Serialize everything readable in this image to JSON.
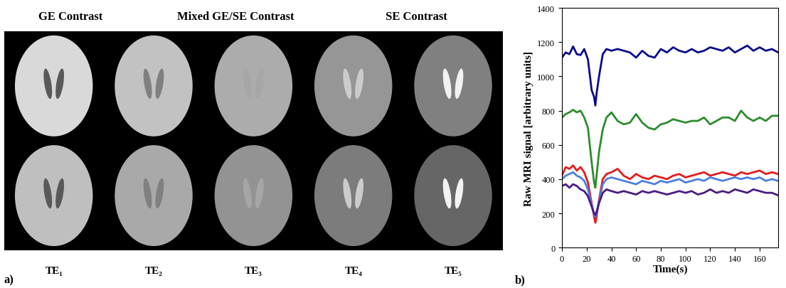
{
  "panel_labels": [
    "a)",
    "b)"
  ],
  "panel_a": {
    "type": "image_grid",
    "headers": [
      "GE Contrast",
      "Mixed GE/SE Contrast",
      "SE Contrast"
    ],
    "echo_times": [
      "TE₁",
      "TE₂",
      "TE₃",
      "TE₄",
      "TE₅"
    ]
  },
  "chart_data": {
    "type": "line",
    "x_label": "Time(s)",
    "y_label": "Raw MRI signal [arbitrary units]",
    "x": [
      0,
      3,
      6,
      9,
      12,
      15,
      18,
      21,
      24,
      26,
      27,
      28,
      30,
      33,
      36,
      40,
      45,
      50,
      55,
      60,
      65,
      70,
      75,
      80,
      85,
      90,
      95,
      100,
      105,
      110,
      115,
      120,
      125,
      130,
      135,
      140,
      145,
      150,
      155,
      160,
      165,
      170,
      175
    ],
    "xlim": [
      0,
      175
    ],
    "xticks": [
      0,
      20,
      40,
      60,
      80,
      100,
      120,
      140,
      160
    ],
    "ylim": [
      0,
      1400
    ],
    "yticks": [
      0,
      200,
      400,
      600,
      800,
      1000,
      1200,
      1400
    ],
    "grid": false,
    "series": [
      {
        "color": "#0a0a8c",
        "values": [
          1110,
          1140,
          1130,
          1175,
          1130,
          1125,
          1160,
          1100,
          920,
          880,
          830,
          900,
          1000,
          1130,
          1160,
          1150,
          1160,
          1150,
          1140,
          1110,
          1150,
          1120,
          1110,
          1160,
          1140,
          1170,
          1150,
          1140,
          1160,
          1140,
          1150,
          1170,
          1160,
          1150,
          1170,
          1140,
          1160,
          1180,
          1150,
          1170,
          1150,
          1160,
          1140
        ]
      },
      {
        "color": "#2e8b2e",
        "values": [
          760,
          780,
          790,
          805,
          790,
          800,
          760,
          700,
          500,
          380,
          350,
          420,
          560,
          690,
          760,
          790,
          740,
          720,
          730,
          780,
          730,
          700,
          690,
          720,
          730,
          750,
          740,
          730,
          740,
          740,
          760,
          720,
          740,
          760,
          760,
          740,
          800,
          760,
          740,
          760,
          740,
          770,
          770
        ]
      },
      {
        "color": "#e41a1c",
        "values": [
          420,
          470,
          460,
          480,
          450,
          470,
          440,
          380,
          260,
          180,
          145,
          180,
          280,
          400,
          430,
          440,
          460,
          420,
          400,
          430,
          410,
          400,
          420,
          410,
          400,
          420,
          430,
          410,
          420,
          430,
          440,
          420,
          430,
          440,
          430,
          420,
          440,
          430,
          440,
          450,
          430,
          440,
          430
        ]
      },
      {
        "color": "#4a7fe0",
        "values": [
          400,
          420,
          430,
          440,
          420,
          410,
          390,
          340,
          250,
          190,
          180,
          200,
          270,
          370,
          400,
          410,
          400,
          390,
          380,
          370,
          390,
          380,
          370,
          390,
          380,
          390,
          400,
          380,
          390,
          400,
          390,
          410,
          400,
          390,
          400,
          410,
          400,
          410,
          400,
          410,
          390,
          400,
          390
        ]
      },
      {
        "color": "#4b1a82",
        "values": [
          360,
          370,
          350,
          370,
          360,
          340,
          330,
          300,
          240,
          200,
          190,
          210,
          260,
          320,
          340,
          330,
          320,
          330,
          320,
          310,
          330,
          320,
          330,
          320,
          310,
          320,
          330,
          320,
          330,
          310,
          320,
          340,
          320,
          330,
          320,
          340,
          330,
          320,
          340,
          330,
          320,
          320,
          305
        ]
      }
    ]
  }
}
